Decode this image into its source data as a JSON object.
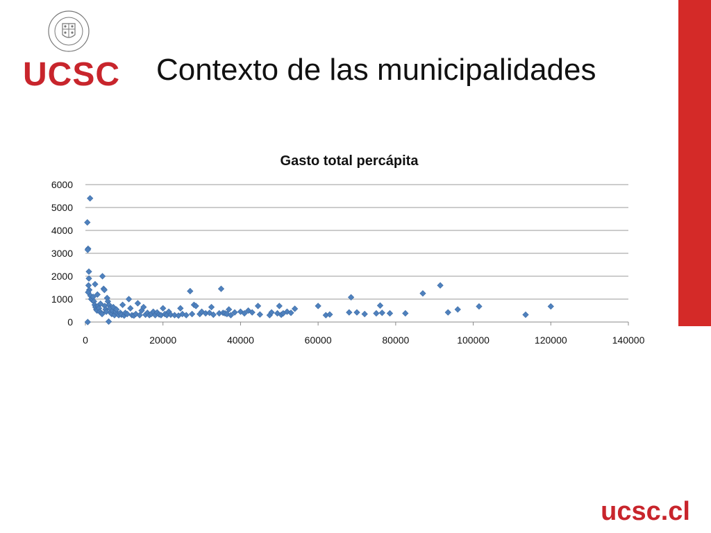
{
  "header": {
    "logo_text": "UCSC",
    "seal_text": "UNIVERSIDAD CATÓLICA DE LA SANTÍSIMA CONCEPCIÓN",
    "title": "Contexto de las municipalidades"
  },
  "footer": {
    "brand": "ucsc.cl"
  },
  "colors": {
    "accent": "#d42a28",
    "brand_text": "#c8252c",
    "marker": "#4f81bd"
  },
  "chart_data": {
    "type": "scatter",
    "title": "Gasto total percápita",
    "xlabel": "",
    "ylabel": "",
    "xlim": [
      0,
      140000
    ],
    "ylim": [
      0,
      6000
    ],
    "xticks": [
      "0",
      "20000",
      "40000",
      "60000",
      "80000",
      "100000",
      "120000",
      "140000"
    ],
    "yticks": [
      "0",
      "1000",
      "2000",
      "3000",
      "4000",
      "5000",
      "6000"
    ],
    "grid": "horizontal",
    "legend": "none",
    "series": [
      {
        "points": [
          [
            600,
            0
          ],
          [
            500,
            4350
          ],
          [
            700,
            3200
          ],
          [
            600,
            3150
          ],
          [
            1200,
            5400
          ],
          [
            900,
            2200
          ],
          [
            900,
            1900
          ],
          [
            800,
            1600
          ],
          [
            1000,
            1400
          ],
          [
            700,
            1300
          ],
          [
            1300,
            1150
          ],
          [
            1500,
            1000
          ],
          [
            1800,
            950
          ],
          [
            2000,
            1100
          ],
          [
            2500,
            1650
          ],
          [
            2200,
            900
          ],
          [
            2400,
            750
          ],
          [
            2600,
            650
          ],
          [
            2800,
            550
          ],
          [
            3000,
            500
          ],
          [
            3100,
            1200
          ],
          [
            3300,
            700
          ],
          [
            3500,
            600
          ],
          [
            3700,
            450
          ],
          [
            3900,
            800
          ],
          [
            4100,
            400
          ],
          [
            4300,
            350
          ],
          [
            4400,
            2000
          ],
          [
            4700,
            1450
          ],
          [
            4900,
            1400
          ],
          [
            5000,
            700
          ],
          [
            5200,
            550
          ],
          [
            5400,
            450
          ],
          [
            5600,
            1050
          ],
          [
            5800,
            900
          ],
          [
            6000,
            20
          ],
          [
            6100,
            750
          ],
          [
            6300,
            600
          ],
          [
            6500,
            400
          ],
          [
            6800,
            350
          ],
          [
            7000,
            500
          ],
          [
            7200,
            650
          ],
          [
            7500,
            300
          ],
          [
            7800,
            450
          ],
          [
            8000,
            550
          ],
          [
            8300,
            350
          ],
          [
            8600,
            300
          ],
          [
            9000,
            400
          ],
          [
            9300,
            320
          ],
          [
            9600,
            750
          ],
          [
            10000,
            280
          ],
          [
            10300,
            400
          ],
          [
            10800,
            350
          ],
          [
            11200,
            1000
          ],
          [
            11600,
            600
          ],
          [
            12000,
            300
          ],
          [
            12500,
            280
          ],
          [
            13000,
            350
          ],
          [
            13500,
            820
          ],
          [
            14000,
            300
          ],
          [
            14500,
            500
          ],
          [
            15000,
            650
          ],
          [
            15500,
            320
          ],
          [
            16000,
            400
          ],
          [
            16500,
            300
          ],
          [
            17000,
            350
          ],
          [
            17500,
            450
          ],
          [
            18000,
            300
          ],
          [
            18500,
            420
          ],
          [
            19000,
            330
          ],
          [
            19500,
            300
          ],
          [
            20000,
            600
          ],
          [
            20500,
            350
          ],
          [
            21000,
            300
          ],
          [
            21500,
            450
          ],
          [
            22000,
            320
          ],
          [
            23000,
            300
          ],
          [
            24000,
            280
          ],
          [
            24500,
            600
          ],
          [
            25000,
            350
          ],
          [
            26000,
            300
          ],
          [
            27000,
            1350
          ],
          [
            27500,
            350
          ],
          [
            28000,
            750
          ],
          [
            28500,
            700
          ],
          [
            29500,
            350
          ],
          [
            30000,
            450
          ],
          [
            31000,
            380
          ],
          [
            32000,
            400
          ],
          [
            32500,
            650
          ],
          [
            33000,
            320
          ],
          [
            34500,
            380
          ],
          [
            35000,
            1450
          ],
          [
            35500,
            400
          ],
          [
            36000,
            380
          ],
          [
            36500,
            350
          ],
          [
            37000,
            550
          ],
          [
            37500,
            300
          ],
          [
            38500,
            420
          ],
          [
            40000,
            450
          ],
          [
            41000,
            380
          ],
          [
            42000,
            500
          ],
          [
            43000,
            420
          ],
          [
            44500,
            700
          ],
          [
            45000,
            330
          ],
          [
            47500,
            300
          ],
          [
            48000,
            420
          ],
          [
            49500,
            380
          ],
          [
            50000,
            700
          ],
          [
            50500,
            320
          ],
          [
            51000,
            380
          ],
          [
            52000,
            450
          ],
          [
            53000,
            400
          ],
          [
            54000,
            580
          ],
          [
            60000,
            700
          ],
          [
            62000,
            300
          ],
          [
            63000,
            330
          ],
          [
            68000,
            420
          ],
          [
            68500,
            1080
          ],
          [
            70000,
            420
          ],
          [
            72000,
            350
          ],
          [
            75000,
            380
          ],
          [
            76000,
            720
          ],
          [
            76500,
            400
          ],
          [
            78500,
            380
          ],
          [
            82500,
            380
          ],
          [
            87000,
            1250
          ],
          [
            91500,
            1600
          ],
          [
            93500,
            420
          ],
          [
            96000,
            550
          ],
          [
            101500,
            680
          ],
          [
            113500,
            320
          ],
          [
            120000,
            680
          ]
        ]
      }
    ]
  }
}
